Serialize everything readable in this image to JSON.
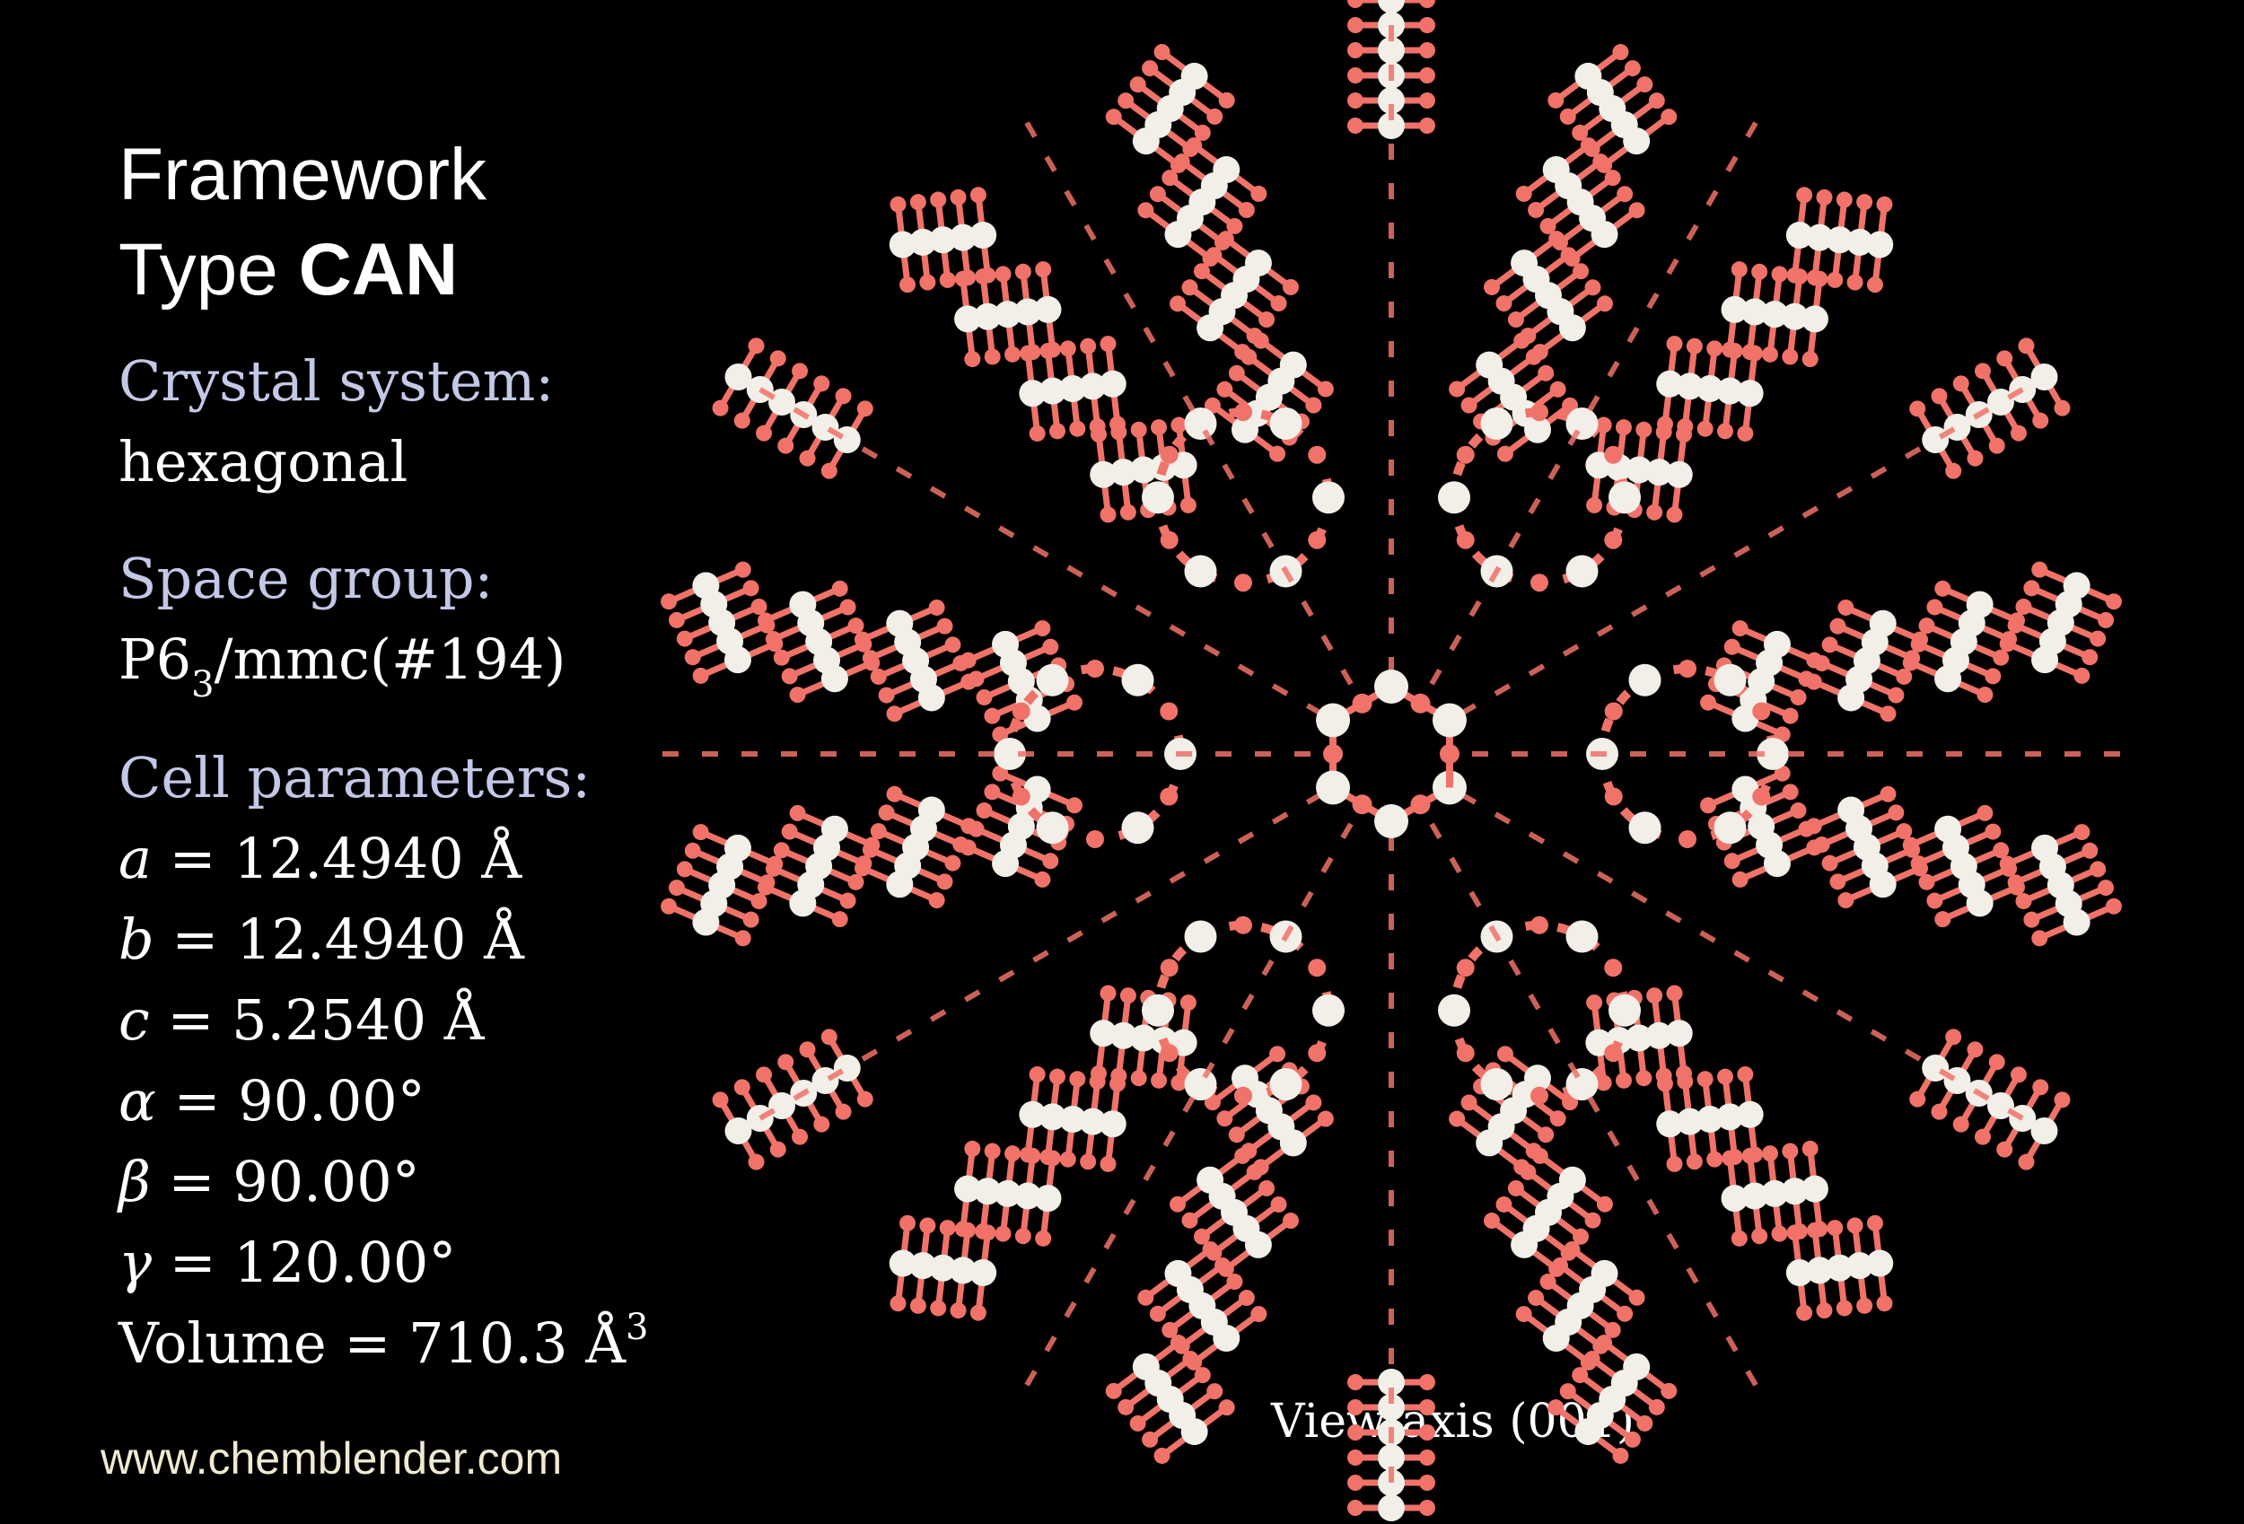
{
  "title": {
    "line1": "Framework",
    "line2_prefix": "Type",
    "code": "CAN"
  },
  "crystal_system": {
    "label": "Crystal system:",
    "value": "hexagonal"
  },
  "space_group": {
    "label": "Space group:",
    "symbol_main": "P6",
    "symbol_sub": "3",
    "symbol_rest": "/mmc(#194)"
  },
  "cell_parameters": {
    "label": "Cell parameters:",
    "a": {
      "sym": "a",
      "text": " = 12.4940 Å"
    },
    "b": {
      "sym": "b",
      "text": " = 12.4940 Å"
    },
    "c": {
      "sym": "c",
      "text": " = 5.2540 Å"
    },
    "alpha": {
      "sym": "α",
      "text": " = 90.00°"
    },
    "beta": {
      "sym": "β",
      "text": " = 90.00°"
    },
    "gamma": {
      "sym": "γ",
      "text": " = 120.00°"
    },
    "volume": {
      "text": "Volume = 710.3 Å",
      "sup": "3"
    }
  },
  "website": "www.chemblender.com",
  "view_caption": "View axis (001)",
  "colors": {
    "background": "#000000",
    "oxygen": "#f07268",
    "silicon": "#f2eee8",
    "label": "#c3c8e6"
  }
}
